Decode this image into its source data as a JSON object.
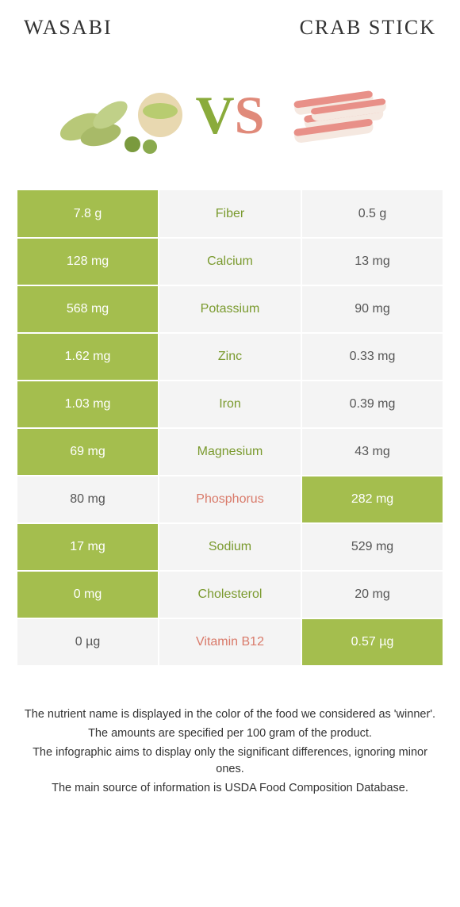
{
  "header": {
    "left": "Wasabi",
    "right": "Crab Stick"
  },
  "vs": {
    "v": "V",
    "s": "S"
  },
  "colors": {
    "win_bg": "#a4be4e",
    "lose_bg": "#f4f4f4",
    "mid_bg": "#f4f4f4",
    "green_text": "#7a9a2e",
    "salmon_text": "#d97a6a",
    "white": "#ffffff"
  },
  "table": {
    "rows": [
      {
        "nutrient": "Fiber",
        "left": "7.8 g",
        "right": "0.5 g",
        "winner": "left"
      },
      {
        "nutrient": "Calcium",
        "left": "128 mg",
        "right": "13 mg",
        "winner": "left"
      },
      {
        "nutrient": "Potassium",
        "left": "568 mg",
        "right": "90 mg",
        "winner": "left"
      },
      {
        "nutrient": "Zinc",
        "left": "1.62 mg",
        "right": "0.33 mg",
        "winner": "left"
      },
      {
        "nutrient": "Iron",
        "left": "1.03 mg",
        "right": "0.39 mg",
        "winner": "left"
      },
      {
        "nutrient": "Magnesium",
        "left": "69 mg",
        "right": "43 mg",
        "winner": "left"
      },
      {
        "nutrient": "Phosphorus",
        "left": "80 mg",
        "right": "282 mg",
        "winner": "right"
      },
      {
        "nutrient": "Sodium",
        "left": "17 mg",
        "right": "529 mg",
        "winner": "left"
      },
      {
        "nutrient": "Cholesterol",
        "left": "0 mg",
        "right": "20 mg",
        "winner": "left"
      },
      {
        "nutrient": "Vitamin B12",
        "left": "0 µg",
        "right": "0.57 µg",
        "winner": "right"
      }
    ]
  },
  "footnotes": [
    "The nutrient name is displayed in the color of the food we considered as 'winner'.",
    "The amounts are specified per 100 gram of the product.",
    "The infographic aims to display only the significant differences, ignoring minor ones.",
    "The main source of information is USDA Food Composition Database."
  ]
}
